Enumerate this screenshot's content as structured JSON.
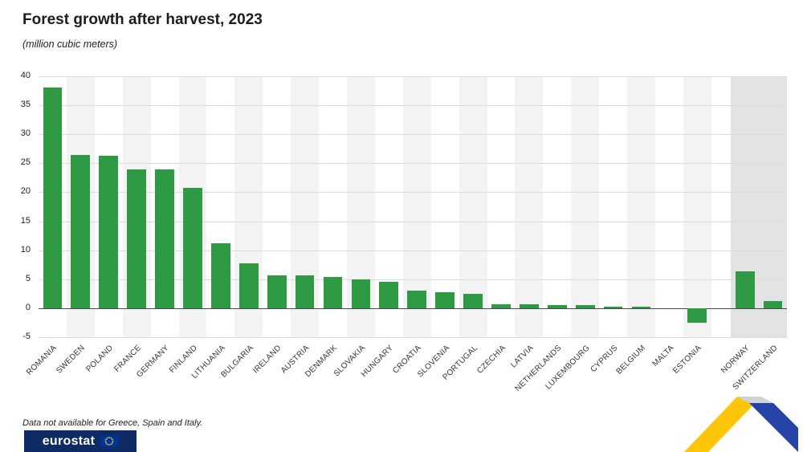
{
  "header": {
    "title": "Forest growth after harvest, 2023",
    "subtitle": "(million cubic meters)"
  },
  "footnote": "Data not available for Greece, Spain and Italy.",
  "brand": {
    "logo_text": "eurostat",
    "logo_bg": "#0e2b63",
    "flag_blue": "#003399",
    "flag_star_yellow": "#ffd617"
  },
  "chart_data": {
    "type": "bar",
    "title": "Forest growth after harvest, 2023",
    "unit": "(million cubic meters)",
    "ylabel": "",
    "xlabel": "",
    "ylim": [
      -5,
      40
    ],
    "yticks": [
      40,
      35,
      30,
      25,
      20,
      15,
      10,
      5,
      0,
      -5
    ],
    "grid": true,
    "bar_color": "#2e9b44",
    "categories": [
      "ROMANIA",
      "SWEDEN",
      "POLAND",
      "FRANCE",
      "GERMANY",
      "FINLAND",
      "LITHUANIA",
      "BULGARIA",
      "IRELAND",
      "AUSTRIA",
      "DENMARK",
      "SLOVAKIA",
      "HUNGARY",
      "CROATIA",
      "SLOVENIA",
      "PORTUGAL",
      "CZECHIA",
      "LATVIA",
      "NETHERLANDS",
      "LUXEMBOURG",
      "CYPRUS",
      "BELGIUM",
      "MALTA",
      "ESTONIA",
      "NORWAY",
      "SWITZERLAND"
    ],
    "values": [
      38,
      26.5,
      26.3,
      24,
      24,
      20.8,
      11.2,
      7.8,
      5.7,
      5.6,
      5.4,
      5.0,
      4.5,
      3.0,
      2.7,
      2.5,
      0.7,
      0.7,
      0.6,
      0.5,
      0.2,
      0.2,
      0,
      -2.5,
      6.3,
      1.2
    ],
    "efta_categories": [
      "NORWAY",
      "SWITZERLAND"
    ]
  }
}
